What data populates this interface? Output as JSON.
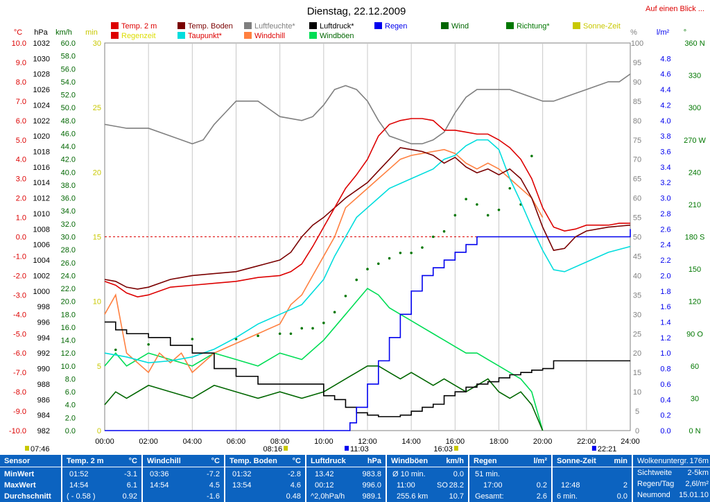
{
  "header": {
    "title": "Dienstag, 22.12.2009",
    "link": "Auf einen Blick ..."
  },
  "colors": {
    "temp": "#dd0000",
    "boden": "#7a0000",
    "feuchte": "#7f7f7f",
    "druck": "#000000",
    "regen": "#0000ee",
    "wind": "#006600",
    "richtung": "#007700",
    "sonne": "#c8c800",
    "regenzeit": "#dddd00",
    "taupunkt": "#00dddd",
    "windchill": "#ff8040",
    "windboeen": "#00dd55"
  },
  "legend": [
    {
      "label": "Temp. 2 m",
      "color": "#dd0000",
      "text_color": "#dd0000"
    },
    {
      "label": "Temp. Boden",
      "color": "#7a0000",
      "text_color": "#7a0000"
    },
    {
      "label": "Luftfeuchte*",
      "color": "#7f7f7f",
      "text_color": "#7f7f7f"
    },
    {
      "label": "Luftdruck*",
      "color": "#000000",
      "text_color": "#000000"
    },
    {
      "label": "Regen",
      "color": "#0000ee",
      "text_color": "#0000ee"
    },
    {
      "label": "Wind",
      "color": "#006600",
      "text_color": "#006600"
    },
    {
      "label": "Richtung*",
      "color": "#007700",
      "text_color": "#007700"
    },
    {
      "label": "Sonne-Zeit",
      "color": "#c8c800",
      "text_color": "#c8c800"
    },
    {
      "label": "Regenzeit",
      "color": "#dd0000",
      "text_color": "#dddd00"
    },
    {
      "label": "Taupunkt*",
      "color": "#00dddd",
      "text_color": "#dd0000"
    },
    {
      "label": "Windchill",
      "color": "#ff8040",
      "text_color": "#dd0000"
    },
    {
      "label": "Windböen",
      "color": "#00dd55",
      "text_color": "#006600"
    }
  ],
  "axis_headers": {
    "c": "°C",
    "hpa": "hPa",
    "kmh": "km/h",
    "min": "min",
    "pct": "%",
    "lm2": "l/m²",
    "deg": "°"
  },
  "chart_data": {
    "type": "line",
    "title": "Dienstag, 22.12.2009",
    "x_ticks": [
      "00:00",
      "02:00",
      "04:00",
      "06:00",
      "08:00",
      "10:00",
      "12:00",
      "14:00",
      "16:00",
      "18:00",
      "20:00",
      "22:00",
      "24:00"
    ],
    "xlim": [
      0,
      24
    ],
    "axes": {
      "temp_c": {
        "ylim": [
          -10,
          10
        ],
        "ticks": [
          "10.0",
          "9.0",
          "8.0",
          "7.0",
          "6.0",
          "5.0",
          "4.0",
          "3.0",
          "2.0",
          "1.0",
          "0.0",
          "-1.0",
          "-2.0",
          "-3.0",
          "-4.0",
          "-5.0",
          "-6.0",
          "-7.0",
          "-8.0",
          "-9.0",
          "-10.0"
        ]
      },
      "pressure_hpa": {
        "ylim": [
          982,
          1032
        ],
        "ticks": [
          "1032",
          "1030",
          "1028",
          "1026",
          "1024",
          "1022",
          "1020",
          "1018",
          "1016",
          "1014",
          "1012",
          "1010",
          "1008",
          "1006",
          "1004",
          "1002",
          "1000",
          "998",
          "996",
          "994",
          "992",
          "990",
          "988",
          "986",
          "984",
          "982"
        ]
      },
      "wind_kmh": {
        "ylim": [
          0,
          60
        ],
        "ticks": [
          "60.0",
          "58.0",
          "56.0",
          "54.0",
          "52.0",
          "50.0",
          "48.0",
          "46.0",
          "44.0",
          "42.0",
          "40.0",
          "38.0",
          "36.0",
          "34.0",
          "32.0",
          "30.0",
          "28.0",
          "26.0",
          "24.0",
          "22.0",
          "20.0",
          "18.0",
          "16.0",
          "14.0",
          "12.0",
          "10.0",
          "8.0",
          "6.0",
          "4.0",
          "2.0",
          "0.0"
        ]
      },
      "time_min": {
        "ylim": [
          0,
          30
        ],
        "ticks": [
          "30",
          "25",
          "20",
          "15",
          "10",
          "5",
          "0"
        ]
      },
      "humidity_pct": {
        "ylim": [
          0,
          100
        ],
        "ticks": [
          "100",
          "95",
          "90",
          "85",
          "80",
          "75",
          "70",
          "65",
          "60",
          "55",
          "50",
          "45",
          "40",
          "35",
          "30",
          "25",
          "20",
          "15",
          "10",
          "5",
          "0"
        ]
      },
      "rain_lm2": {
        "ylim": [
          0,
          5
        ],
        "ticks": [
          "4.8",
          "4.6",
          "4.4",
          "4.2",
          "4.0",
          "3.8",
          "3.6",
          "3.4",
          "3.2",
          "3.0",
          "2.8",
          "2.6",
          "2.4",
          "2.2",
          "2.0",
          "1.8",
          "1.6",
          "1.4",
          "1.2",
          "1.0",
          "0.8",
          "0.6",
          "0.4",
          "0.2",
          "0.0"
        ]
      },
      "direction_deg": {
        "ylim": [
          0,
          360
        ],
        "ticks": [
          "360 N",
          "330",
          "300",
          "270 W",
          "240",
          "210",
          "180 S",
          "150",
          "120",
          "90 O",
          "60",
          "30",
          "0 N"
        ]
      }
    },
    "series": [
      {
        "name": "Temp. 2 m",
        "unit": "°C",
        "x": [
          0,
          0.5,
          1,
          1.5,
          2,
          2.5,
          3,
          4,
          5,
          6,
          7,
          8,
          8.5,
          9,
          9.5,
          10,
          10.5,
          11,
          11.5,
          12,
          12.5,
          13,
          13.5,
          14,
          14.5,
          15,
          15.5,
          16,
          16.5,
          17,
          17.5,
          18,
          18.5,
          19,
          19.5,
          20,
          20.5,
          21,
          21.5,
          22,
          22.5,
          23,
          23.5,
          24
        ],
        "values": [
          -2.3,
          -2.5,
          -2.9,
          -3.1,
          -3.0,
          -2.8,
          -2.6,
          -2.5,
          -2.4,
          -2.3,
          -2.1,
          -2.0,
          -1.8,
          -1.4,
          -0.5,
          0.5,
          1.5,
          2.5,
          3.2,
          4.0,
          5.2,
          5.8,
          6.0,
          6.1,
          6.1,
          6.0,
          5.5,
          5.5,
          5.4,
          5.3,
          5.3,
          5.0,
          4.6,
          4.0,
          3.0,
          1.5,
          0.5,
          0.3,
          0.4,
          0.6,
          0.6,
          0.6,
          0.7,
          0.7
        ]
      },
      {
        "name": "Temp. Boden",
        "unit": "°C",
        "x": [
          0,
          0.5,
          1,
          1.5,
          2,
          3,
          4,
          5,
          6,
          7,
          8,
          8.5,
          9,
          9.5,
          10,
          10.5,
          11,
          11.5,
          12,
          12.5,
          13,
          13.5,
          14,
          14.5,
          15,
          15.5,
          16,
          16.5,
          17,
          17.5,
          18,
          18.5,
          19,
          19.5,
          20,
          20.5,
          21,
          21.5,
          22,
          23,
          24
        ],
        "values": [
          -2.2,
          -2.3,
          -2.6,
          -2.7,
          -2.6,
          -2.2,
          -2.0,
          -1.9,
          -1.8,
          -1.5,
          -1.2,
          -0.8,
          0.0,
          0.6,
          1.0,
          1.5,
          2.0,
          2.4,
          2.8,
          3.4,
          4.0,
          4.6,
          4.5,
          4.4,
          4.2,
          3.8,
          4.1,
          3.6,
          3.3,
          3.5,
          3.2,
          3.5,
          3.0,
          2.0,
          0.5,
          -0.7,
          -0.6,
          0.0,
          0.3,
          0.5,
          0.6
        ]
      },
      {
        "name": "Luftfeuchte*",
        "unit": "%",
        "x": [
          0,
          1,
          2,
          3,
          4,
          4.5,
          5,
          5.5,
          6,
          7,
          7.5,
          8,
          9,
          9.5,
          10,
          10.5,
          11,
          11.5,
          12,
          12.5,
          13,
          13.5,
          14,
          14.5,
          15,
          15.5,
          16,
          16.5,
          17,
          17.5,
          18,
          18.5,
          19,
          19.5,
          20,
          20.5,
          21,
          21.5,
          22,
          22.5,
          23,
          23.5,
          24
        ],
        "values": [
          79,
          78,
          78,
          76,
          74,
          75,
          79,
          82,
          85,
          85,
          83,
          81,
          80,
          81,
          84,
          88,
          89,
          88,
          85,
          80,
          76,
          75,
          74,
          74,
          75,
          77,
          82,
          86,
          88,
          88,
          88,
          88,
          87,
          86,
          85,
          85,
          86,
          87,
          88,
          89,
          90,
          90,
          92
        ]
      },
      {
        "name": "Luftdruck*",
        "unit": "hPa",
        "x": [
          0,
          0.5,
          1,
          2,
          3,
          4,
          5,
          6,
          7,
          8,
          9,
          10,
          10.5,
          11,
          11.5,
          12,
          12.5,
          13,
          13.5,
          14,
          14.5,
          15,
          15.5,
          16,
          16.5,
          17,
          17.5,
          18,
          18.5,
          19,
          19.5,
          20,
          20.5,
          21,
          22,
          23,
          24
        ],
        "values": [
          996.0,
          995.0,
          994.5,
          994.0,
          993.0,
          992.0,
          990.0,
          989.0,
          988.0,
          988.0,
          988.0,
          986.5,
          986.0,
          985.0,
          984.3,
          984.0,
          983.8,
          983.8,
          984.0,
          984.5,
          985.0,
          985.4,
          986.5,
          987.0,
          987.6,
          988.0,
          988.3,
          988.8,
          989.2,
          989.5,
          989.8,
          990.0,
          991.0,
          991.0,
          991.0,
          991.0,
          991.0
        ]
      },
      {
        "name": "Regen",
        "unit": "l/m²",
        "x": [
          0,
          11,
          11.2,
          11.5,
          12,
          12.5,
          13,
          13.5,
          14,
          14.5,
          15,
          15.5,
          16,
          16.5,
          17,
          18,
          19,
          20,
          21,
          23.5,
          24
        ],
        "values": [
          0.0,
          0.0,
          0.1,
          0.3,
          0.6,
          0.9,
          1.2,
          1.5,
          1.8,
          2.0,
          2.1,
          2.2,
          2.3,
          2.4,
          2.5,
          2.5,
          2.5,
          2.5,
          2.5,
          2.5,
          2.6
        ]
      },
      {
        "name": "Taupunkt*",
        "unit": "°C",
        "x": [
          0,
          1,
          2,
          3,
          4,
          5,
          6,
          7,
          8,
          9,
          10,
          10.5,
          11,
          11.5,
          12,
          12.5,
          13,
          14,
          15,
          15.5,
          16,
          16.5,
          17,
          17.5,
          18,
          18.5,
          19,
          19.5,
          20,
          20.5,
          21,
          22,
          23,
          24
        ],
        "values": [
          -6.0,
          -6.2,
          -6.5,
          -6.4,
          -6.2,
          -5.8,
          -5.2,
          -4.5,
          -4.0,
          -3.5,
          -2.2,
          -1.0,
          0.0,
          1.0,
          1.5,
          2.0,
          2.5,
          3.0,
          3.5,
          4.0,
          4.2,
          4.7,
          5.0,
          5.0,
          4.5,
          3.0,
          1.8,
          0.5,
          -0.7,
          -1.7,
          -1.8,
          -1.3,
          -0.8,
          -0.5
        ]
      },
      {
        "name": "Windchill",
        "unit": "°C",
        "x": [
          0,
          0.5,
          1,
          1.5,
          2,
          2.5,
          3,
          3.5,
          4,
          5,
          6,
          7,
          8,
          8.5,
          9,
          9.5,
          10,
          10.5,
          11,
          11.5,
          12,
          12.5,
          13,
          13.5,
          14,
          14.5,
          15,
          15.5,
          16,
          16.5,
          17,
          17.5,
          18,
          18.5,
          19,
          19.5,
          20
        ],
        "values": [
          -4.0,
          -3.0,
          -6.0,
          -6.5,
          -7.0,
          -6.0,
          -6.5,
          -6.0,
          -7.0,
          -6.0,
          -5.5,
          -5.0,
          -4.5,
          -3.5,
          -3.0,
          -2.0,
          -1.0,
          0.0,
          1.5,
          2.0,
          2.5,
          3.0,
          3.5,
          4.0,
          4.2,
          4.3,
          4.4,
          4.5,
          4.3,
          3.8,
          3.5,
          3.8,
          3.5,
          3.0,
          2.5,
          2.0,
          1.0
        ]
      },
      {
        "name": "Wind",
        "unit": "km/h",
        "x": [
          0,
          0.5,
          1,
          2,
          3,
          4,
          5,
          6,
          7,
          8,
          9,
          10,
          10.5,
          11,
          11.5,
          12,
          12.5,
          13,
          13.5,
          14,
          14.5,
          15,
          15.5,
          16,
          16.5,
          17,
          17.5,
          18,
          18.5,
          19,
          19.5,
          20
        ],
        "values": [
          4,
          6,
          5,
          7,
          6,
          5,
          7,
          6,
          5,
          6,
          5,
          6,
          7,
          8,
          9,
          10,
          10,
          9,
          8,
          9,
          8,
          7,
          8,
          7,
          6,
          7,
          8,
          6,
          5,
          6,
          4,
          0
        ]
      },
      {
        "name": "Windböen",
        "unit": "km/h",
        "x": [
          0,
          0.5,
          1,
          2,
          3,
          4,
          5,
          6,
          7,
          8,
          9,
          10,
          10.5,
          11,
          11.5,
          12,
          12.5,
          13,
          13.5,
          14,
          14.5,
          15,
          15.5,
          16,
          16.5,
          17,
          17.5,
          18,
          18.5,
          19,
          19.5,
          20
        ],
        "values": [
          10,
          12,
          10,
          12,
          11,
          10,
          12,
          11,
          10,
          12,
          11,
          14,
          16,
          18,
          20,
          22,
          21,
          19,
          18,
          17,
          16,
          15,
          14,
          13,
          12,
          12,
          11,
          10,
          9,
          8,
          6,
          0
        ]
      },
      {
        "name": "Richtung*",
        "unit": "°",
        "x": [
          0.5,
          2,
          4,
          6,
          7,
          8,
          8.5,
          9,
          9.5,
          10,
          10.5,
          11,
          11.5,
          12,
          12.5,
          13,
          13.5,
          14,
          14.5,
          15,
          15.5,
          16,
          16.5,
          17,
          17.5,
          18,
          18.5,
          19,
          19.5
        ],
        "values": [
          75,
          80,
          85,
          85,
          88,
          90,
          90,
          95,
          95,
          100,
          110,
          125,
          140,
          150,
          155,
          160,
          165,
          165,
          170,
          180,
          185,
          200,
          215,
          210,
          200,
          205,
          225,
          210,
          255
        ]
      }
    ],
    "events": {
      "sunrise": "08:16",
      "sunset": "16:03",
      "daylength_start": "07:46",
      "rain_start": "11:03",
      "rain_end": "22:21"
    }
  },
  "stats": {
    "labels": {
      "sensor": "Sensor",
      "min": "MinWert",
      "max": "MaxWert",
      "avg": "Durchschnitt"
    },
    "temp": {
      "head": "Temp. 2 m",
      "unit": "°C",
      "min_t": "01:52",
      "min_v": "-3.1",
      "max_t": "14:54",
      "max_v": "6.1",
      "avg_t": "( - 0.58 )",
      "avg_v": "0.92"
    },
    "windchill": {
      "head": "Windchill",
      "unit": "°C",
      "min_t": "03:36",
      "min_v": "-7.2",
      "max_t": "14:54",
      "max_v": "4.5",
      "avg_v": "-1.6"
    },
    "boden": {
      "head": "Temp. Boden",
      "unit": "°C",
      "min_t": "01:32",
      "min_v": "-2.8",
      "max_t": "13:54",
      "max_v": "4.6",
      "avg_v": "0.48"
    },
    "druck": {
      "head": "Luftdruck",
      "unit": "hPa",
      "min_t": "13.42",
      "min_v": "983.8",
      "max_t": "00:12",
      "max_v": "996.0",
      "avg_t": "^2,0hPa/h",
      "avg_v": "989.1"
    },
    "boeen": {
      "head": "Windböen",
      "unit": "km/h",
      "r1_l": "Ø 10 min.",
      "r1_v": "0.0",
      "r2_l": "11:00",
      "r2_m": "SO",
      "r2_v": "28.2",
      "r3_l": "255.6 km",
      "r3_v": "10.7"
    },
    "regen": {
      "head": "Regen",
      "unit": "l/m²",
      "r1_l": "51 min.",
      "r2_l": "17:00",
      "r2_v": "0.2",
      "r3_l": "Gesamt:",
      "r3_v": "2.6"
    },
    "sonne": {
      "head": "Sonne-Zeit",
      "unit": "min",
      "r2_l": "12:48",
      "r2_v": "2",
      "r3_l": "6 min.",
      "r3_v": "0.0"
    },
    "extra": {
      "r0_l": "Wolkenuntergr.",
      "r0_v": "176m",
      "r1_l": "Sichtweite",
      "r1_v": "2-5km",
      "r2_l": "Regen/Tag",
      "r2_v": "2,6l/m²",
      "r3_l": "Neumond",
      "r3_v": "15.01.10"
    }
  }
}
